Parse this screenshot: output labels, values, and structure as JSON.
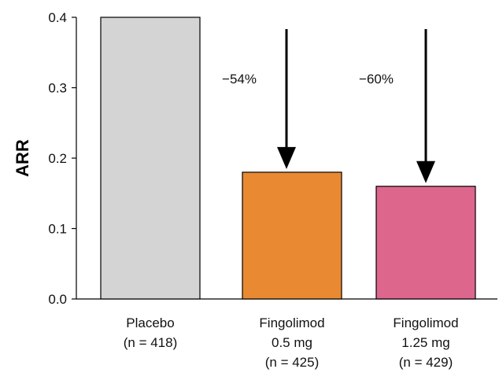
{
  "chart_data": {
    "type": "bar",
    "ylabel": "ARR",
    "xlabel": "",
    "title": "",
    "ylim": [
      0,
      0.4
    ],
    "yticks": [
      "0.0",
      "0.1",
      "0.2",
      "0.3",
      "0.4"
    ],
    "categories": [
      [
        "Placebo",
        "(n = 418)"
      ],
      [
        "Fingolimod",
        "0.5 mg",
        "(n = 425)"
      ],
      [
        "Fingolimod",
        "1.25 mg",
        "(n = 429)"
      ]
    ],
    "values": [
      0.4,
      0.18,
      0.16
    ],
    "colors": [
      "#d3d4d3",
      "#e98a32",
      "#dd668c"
    ],
    "annotations": [
      {
        "category_index": 1,
        "label": "−54%",
        "arrow": "down"
      },
      {
        "category_index": 2,
        "label": "−60%",
        "arrow": "down"
      }
    ],
    "grid": false
  }
}
